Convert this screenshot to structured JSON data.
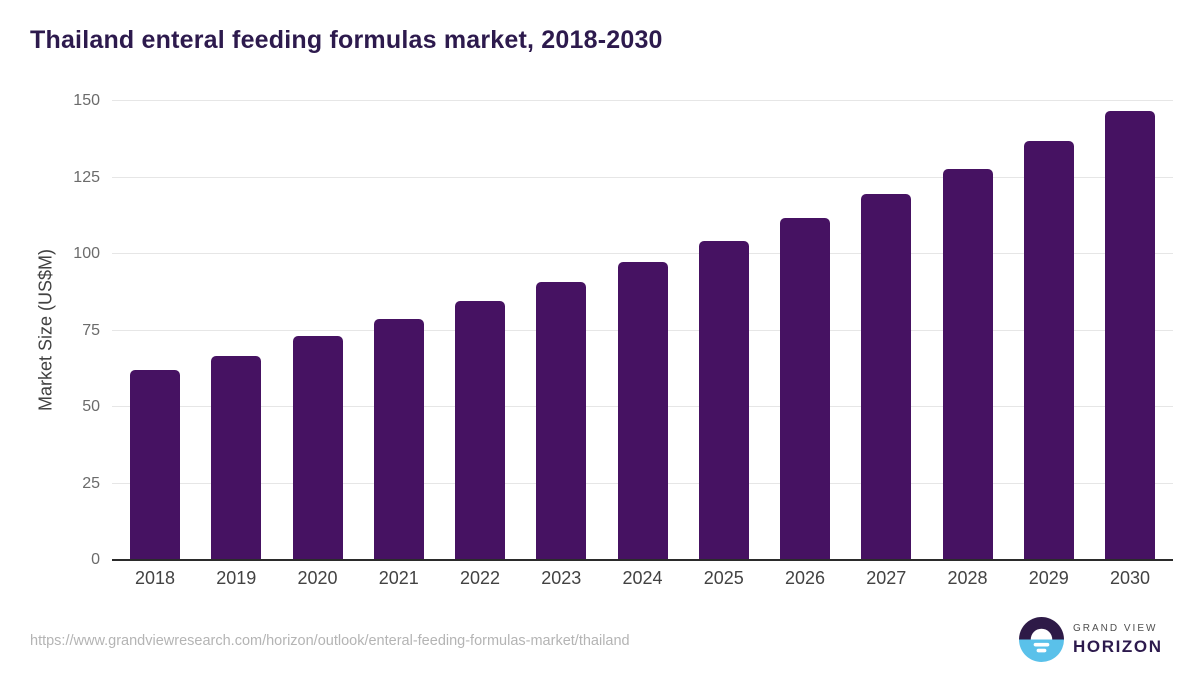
{
  "header": {
    "title": "Thailand enteral feeding formulas market, 2018-2030"
  },
  "chart_data": {
    "type": "bar",
    "title": "Thailand enteral feeding formulas market, 2018-2030",
    "categories": [
      "2018",
      "2019",
      "2020",
      "2021",
      "2022",
      "2023",
      "2024",
      "2025",
      "2026",
      "2027",
      "2028",
      "2029",
      "2030"
    ],
    "values": [
      61.9,
      66.3,
      72.9,
      78.4,
      84.3,
      90.5,
      97.0,
      104.0,
      111.4,
      119.2,
      127.5,
      136.5,
      146.3
    ],
    "xlabel": "",
    "ylabel": "Market Size (US$M)",
    "ylim": [
      0,
      150
    ],
    "yticks": [
      0,
      25,
      50,
      75,
      100,
      125,
      150
    ],
    "grid": "horizontal",
    "legend": "none"
  },
  "footer": {
    "source_url": "https://www.grandviewresearch.com/horizon/outlook/enteral-feeding-formulas-market/thailand",
    "logo": {
      "line1": "GRAND VIEW",
      "line2": "HORIZON"
    }
  },
  "colors": {
    "bar": "#461262",
    "title": "#2d1a4d",
    "gridline": "#e6e6e6",
    "axis_line": "#2b2b2b",
    "ytick_label": "#6b6b6b",
    "xtick_label": "#424242",
    "ylabel": "#414141",
    "url": "#b4b4b4",
    "logo_dark": "#2e1a47",
    "logo_blue": "#5ac1ea",
    "logo_gray": "#4f4f4f",
    "logo_white": "#ffffff"
  }
}
